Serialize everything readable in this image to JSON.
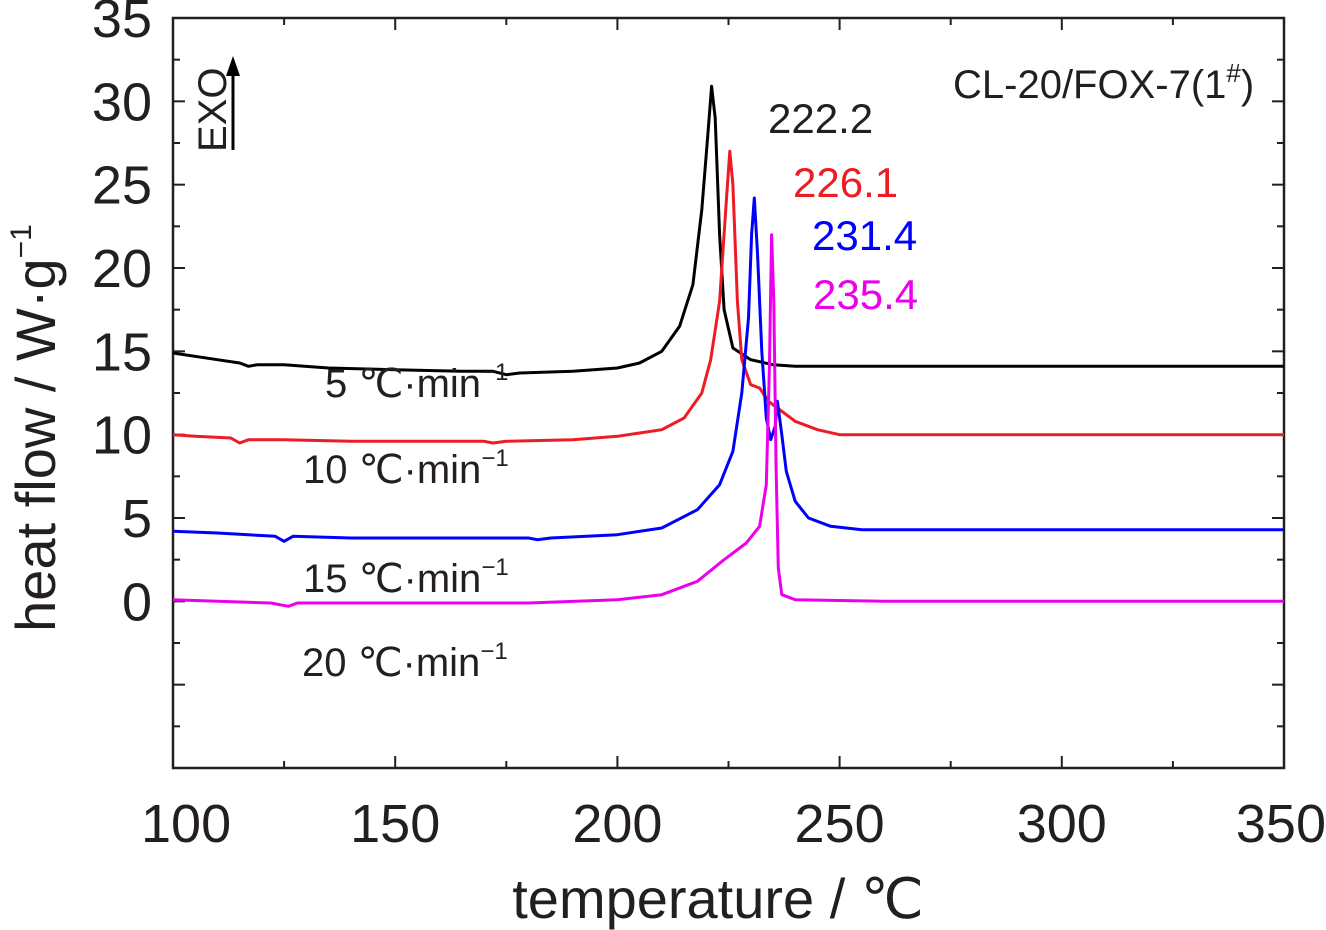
{
  "chart_data": {
    "type": "line",
    "title": "",
    "xlabel": "temperature / ℃",
    "ylabel": "heat flow / W·g",
    "ylabel_sup": "−1",
    "xlim": [
      100,
      350
    ],
    "ylim": [
      -10,
      35
    ],
    "x_ticks": [
      "100",
      "150",
      "200",
      "250",
      "300",
      "350"
    ],
    "y_ticks": [
      "0",
      "5",
      "10",
      "15",
      "20",
      "25",
      "30",
      "35"
    ],
    "grid": false,
    "legend": "none",
    "annotations": {
      "sample": "CL-20/FOX-7(1",
      "sample_sup": "#",
      "sample_close": ")",
      "exo": "EXO"
    },
    "series": [
      {
        "label": "5  ℃·min",
        "label_sup": "−1",
        "color": "#000000",
        "peak_label": "222.2",
        "points": [
          [
            100,
            14.9
          ],
          [
            110,
            14.5
          ],
          [
            115,
            14.3
          ],
          [
            117,
            14.1
          ],
          [
            119,
            14.2
          ],
          [
            125,
            14.2
          ],
          [
            135,
            14.0
          ],
          [
            150,
            13.9
          ],
          [
            165,
            13.8
          ],
          [
            172,
            13.8
          ],
          [
            175,
            13.6
          ],
          [
            178,
            13.7
          ],
          [
            190,
            13.8
          ],
          [
            200,
            14.0
          ],
          [
            205,
            14.3
          ],
          [
            210,
            15.0
          ],
          [
            214,
            16.5
          ],
          [
            217,
            19.0
          ],
          [
            219,
            23.5
          ],
          [
            220.5,
            28.5
          ],
          [
            221.2,
            30.9
          ],
          [
            222,
            29.0
          ],
          [
            223,
            22.0
          ],
          [
            224,
            17.5
          ],
          [
            226,
            15.2
          ],
          [
            230,
            14.5
          ],
          [
            235,
            14.2
          ],
          [
            240,
            14.1
          ],
          [
            260,
            14.1
          ],
          [
            300,
            14.1
          ],
          [
            350,
            14.1
          ]
        ]
      },
      {
        "label": "10 ℃·min",
        "label_sup": "−1",
        "color": "#ed1c24",
        "peak_label": "226.1",
        "points": [
          [
            100,
            10.0
          ],
          [
            105,
            9.9
          ],
          [
            113,
            9.8
          ],
          [
            115,
            9.5
          ],
          [
            117,
            9.7
          ],
          [
            125,
            9.7
          ],
          [
            140,
            9.6
          ],
          [
            160,
            9.6
          ],
          [
            170,
            9.6
          ],
          [
            172,
            9.5
          ],
          [
            175,
            9.6
          ],
          [
            190,
            9.7
          ],
          [
            200,
            9.9
          ],
          [
            210,
            10.3
          ],
          [
            215,
            11.0
          ],
          [
            219,
            12.5
          ],
          [
            221,
            14.5
          ],
          [
            223,
            18.0
          ],
          [
            224.5,
            24.0
          ],
          [
            225.3,
            27.0
          ],
          [
            226,
            25.0
          ],
          [
            227,
            18.0
          ],
          [
            228,
            14.5
          ],
          [
            230,
            13.0
          ],
          [
            232,
            12.8
          ],
          [
            234,
            12.0
          ],
          [
            236,
            11.6
          ],
          [
            240,
            10.8
          ],
          [
            245,
            10.3
          ],
          [
            250,
            10.0
          ],
          [
            260,
            10.0
          ],
          [
            300,
            10.0
          ],
          [
            350,
            10.0
          ]
        ]
      },
      {
        "label": "15 ℃·min",
        "label_sup": "−1",
        "color": "#0000ff",
        "peak_label": "231.4",
        "points": [
          [
            100,
            4.2
          ],
          [
            110,
            4.1
          ],
          [
            123,
            3.9
          ],
          [
            125,
            3.6
          ],
          [
            127,
            3.9
          ],
          [
            140,
            3.8
          ],
          [
            160,
            3.8
          ],
          [
            180,
            3.8
          ],
          [
            182,
            3.7
          ],
          [
            185,
            3.8
          ],
          [
            200,
            4.0
          ],
          [
            210,
            4.4
          ],
          [
            218,
            5.5
          ],
          [
            223,
            7.0
          ],
          [
            226,
            9.0
          ],
          [
            228,
            12.5
          ],
          [
            229.5,
            17.0
          ],
          [
            230.2,
            22.0
          ],
          [
            230.8,
            24.2
          ],
          [
            231.5,
            21.0
          ],
          [
            232.5,
            15.0
          ],
          [
            233.5,
            11.0
          ],
          [
            234.5,
            9.7
          ],
          [
            235.5,
            10.5
          ],
          [
            236,
            12.0
          ],
          [
            237,
            10.0
          ],
          [
            238,
            7.8
          ],
          [
            240,
            6.0
          ],
          [
            243,
            5.0
          ],
          [
            248,
            4.5
          ],
          [
            255,
            4.3
          ],
          [
            300,
            4.3
          ],
          [
            350,
            4.3
          ]
        ]
      },
      {
        "label": "20 ℃·min",
        "label_sup": "−1",
        "color": "#ec00ec",
        "peak_label": "235.4",
        "points": [
          [
            100,
            0.1
          ],
          [
            110,
            0.0
          ],
          [
            122,
            -0.1
          ],
          [
            126,
            -0.3
          ],
          [
            128,
            -0.1
          ],
          [
            140,
            -0.1
          ],
          [
            160,
            -0.1
          ],
          [
            180,
            -0.1
          ],
          [
            200,
            0.1
          ],
          [
            210,
            0.4
          ],
          [
            218,
            1.2
          ],
          [
            224,
            2.5
          ],
          [
            229,
            3.5
          ],
          [
            232,
            4.5
          ],
          [
            233.5,
            7.0
          ],
          [
            234.2,
            14.0
          ],
          [
            234.7,
            22.0
          ],
          [
            235.2,
            18.0
          ],
          [
            235.7,
            8.0
          ],
          [
            236.2,
            2.0
          ],
          [
            237,
            0.4
          ],
          [
            240,
            0.1
          ],
          [
            260,
            0.0
          ],
          [
            300,
            0.0
          ],
          [
            350,
            0.0
          ]
        ]
      }
    ]
  }
}
